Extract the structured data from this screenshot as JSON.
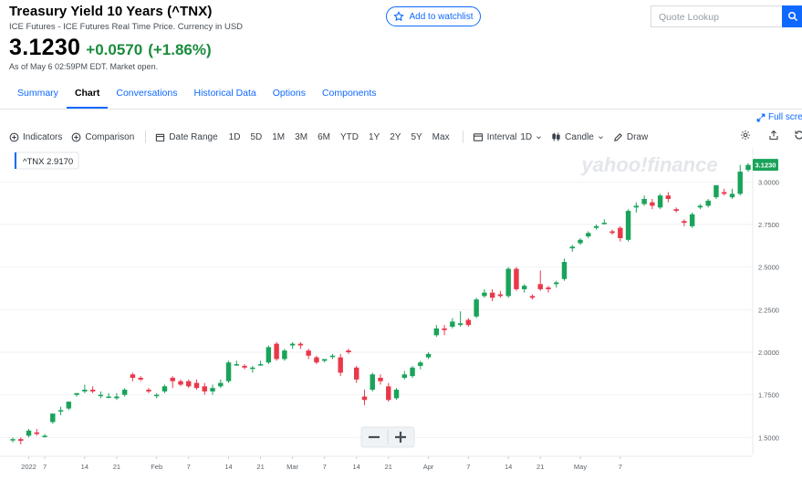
{
  "header": {
    "title": "Treasury Yield 10 Years (^TNX)",
    "subtitle": "ICE Futures - ICE Futures Real Time Price. Currency in USD",
    "price": "3.1230",
    "change": "+0.0570",
    "change_pct": "(+1.86%)",
    "as_of": "As of May 6 02:59PM EDT. Market open."
  },
  "watchlist": {
    "label": "Add to watchlist",
    "icon": "star-icon"
  },
  "search": {
    "placeholder": "Quote Lookup",
    "icon": "search-icon"
  },
  "tabs": [
    {
      "label": "Summary"
    },
    {
      "label": "Chart"
    },
    {
      "label": "Conversations"
    },
    {
      "label": "Historical Data"
    },
    {
      "label": "Options"
    },
    {
      "label": "Components"
    }
  ],
  "active_tab": "Chart",
  "fullscreen_label": "Full scre",
  "toolbar": {
    "indicators": "Indicators",
    "comparison": "Comparison",
    "date_range": "Date Range",
    "ranges": [
      "1D",
      "5D",
      "1M",
      "3M",
      "6M",
      "YTD",
      "1Y",
      "2Y",
      "5Y",
      "Max"
    ],
    "interval_label": "Interval",
    "interval_value": "1D",
    "chart_type": "Candle",
    "draw": "Draw"
  },
  "colors": {
    "accent": "#0f69ff",
    "up": "#1a8c3c",
    "candle_up": "#1aa35a",
    "candle_down": "#e8394b"
  },
  "chart_data": {
    "type": "candlestick",
    "symbol_label": "^TNX",
    "hover_value": "2.9170",
    "last_price_label": "3.1230",
    "watermark": "yahoo!finance",
    "ylim": [
      1.4,
      3.2
    ],
    "y_ticks": [
      "3.0000",
      "2.7500",
      "2.5000",
      "2.2500",
      "2.0000",
      "1.7500",
      "1.5000"
    ],
    "x_ticks": [
      "2022",
      "7",
      "14",
      "21",
      "Feb",
      "7",
      "14",
      "21",
      "Mar",
      "7",
      "14",
      "21",
      "Apr",
      "7",
      "14",
      "21",
      "May",
      "7"
    ],
    "candles": [
      [
        1.49,
        1.5,
        1.47,
        1.49
      ],
      [
        1.49,
        1.5,
        1.46,
        1.48
      ],
      [
        1.51,
        1.55,
        1.5,
        1.54
      ],
      [
        1.53,
        1.55,
        1.51,
        1.52
      ],
      [
        1.51,
        1.52,
        1.5,
        1.51
      ],
      [
        1.59,
        1.64,
        1.58,
        1.64
      ],
      [
        1.66,
        1.68,
        1.63,
        1.66
      ],
      [
        1.67,
        1.71,
        1.66,
        1.71
      ],
      [
        1.75,
        1.76,
        1.74,
        1.76
      ],
      [
        1.77,
        1.81,
        1.76,
        1.78
      ],
      [
        1.78,
        1.8,
        1.76,
        1.77
      ],
      [
        1.75,
        1.77,
        1.73,
        1.75
      ],
      [
        1.74,
        1.76,
        1.73,
        1.74
      ],
      [
        1.73,
        1.76,
        1.72,
        1.74
      ],
      [
        1.75,
        1.79,
        1.74,
        1.78
      ],
      [
        1.87,
        1.88,
        1.83,
        1.85
      ],
      [
        1.85,
        1.86,
        1.83,
        1.84
      ],
      [
        1.78,
        1.79,
        1.76,
        1.77
      ],
      [
        1.75,
        1.76,
        1.73,
        1.75
      ],
      [
        1.77,
        1.81,
        1.76,
        1.8
      ],
      [
        1.85,
        1.86,
        1.79,
        1.83
      ],
      [
        1.83,
        1.84,
        1.8,
        1.81
      ],
      [
        1.83,
        1.84,
        1.79,
        1.8
      ],
      [
        1.82,
        1.84,
        1.78,
        1.79
      ],
      [
        1.8,
        1.82,
        1.75,
        1.77
      ],
      [
        1.77,
        1.81,
        1.75,
        1.79
      ],
      [
        1.8,
        1.84,
        1.79,
        1.82
      ],
      [
        1.83,
        1.95,
        1.82,
        1.94
      ],
      [
        1.93,
        1.95,
        1.92,
        1.93
      ],
      [
        1.92,
        1.93,
        1.9,
        1.91
      ],
      [
        1.91,
        1.92,
        1.88,
        1.91
      ],
      [
        1.93,
        1.95,
        1.92,
        1.93
      ],
      [
        1.94,
        2.04,
        1.93,
        2.03
      ],
      [
        2.05,
        2.06,
        1.95,
        1.96
      ],
      [
        1.96,
        2.02,
        1.95,
        2.01
      ],
      [
        2.04,
        2.06,
        2.02,
        2.05
      ],
      [
        2.05,
        2.06,
        2.02,
        2.04
      ],
      [
        2.01,
        2.02,
        1.96,
        1.98
      ],
      [
        1.97,
        1.98,
        1.93,
        1.94
      ],
      [
        1.95,
        1.96,
        1.94,
        1.96
      ],
      [
        1.98,
        1.99,
        1.96,
        1.98
      ],
      [
        1.97,
        1.99,
        1.86,
        1.88
      ],
      [
        2.01,
        2.02,
        1.99,
        2.0
      ],
      [
        1.91,
        1.92,
        1.82,
        1.84
      ],
      [
        1.74,
        1.78,
        1.69,
        1.72
      ],
      [
        1.78,
        1.88,
        1.77,
        1.87
      ],
      [
        1.85,
        1.87,
        1.81,
        1.83
      ],
      [
        1.8,
        1.82,
        1.71,
        1.72
      ],
      [
        1.73,
        1.79,
        1.72,
        1.78
      ],
      [
        1.85,
        1.89,
        1.84,
        1.87
      ],
      [
        1.86,
        1.92,
        1.85,
        1.91
      ],
      [
        1.92,
        1.95,
        1.9,
        1.94
      ],
      [
        1.97,
        2.0,
        1.96,
        1.99
      ],
      [
        2.1,
        2.16,
        2.09,
        2.14
      ],
      [
        2.14,
        2.16,
        2.1,
        2.13
      ],
      [
        2.15,
        2.2,
        2.14,
        2.18
      ],
      [
        2.16,
        2.24,
        2.15,
        2.17
      ],
      [
        2.19,
        2.2,
        2.15,
        2.16
      ],
      [
        2.21,
        2.32,
        2.2,
        2.31
      ],
      [
        2.33,
        2.37,
        2.32,
        2.35
      ],
      [
        2.35,
        2.37,
        2.3,
        2.32
      ],
      [
        2.34,
        2.36,
        2.32,
        2.33
      ],
      [
        2.33,
        2.5,
        2.32,
        2.49
      ],
      [
        2.49,
        2.5,
        2.36,
        2.37
      ],
      [
        2.37,
        2.4,
        2.35,
        2.39
      ],
      [
        2.33,
        2.34,
        2.31,
        2.32
      ],
      [
        2.4,
        2.48,
        2.36,
        2.37
      ],
      [
        2.38,
        2.39,
        2.35,
        2.37
      ],
      [
        2.4,
        2.42,
        2.38,
        2.41
      ],
      [
        2.43,
        2.55,
        2.42,
        2.53
      ],
      [
        2.61,
        2.63,
        2.59,
        2.62
      ],
      [
        2.64,
        2.67,
        2.63,
        2.66
      ],
      [
        2.68,
        2.71,
        2.67,
        2.7
      ],
      [
        2.73,
        2.75,
        2.72,
        2.74
      ],
      [
        2.76,
        2.78,
        2.75,
        2.76
      ],
      [
        2.71,
        2.72,
        2.69,
        2.7
      ],
      [
        2.73,
        2.74,
        2.65,
        2.67
      ],
      [
        2.66,
        2.84,
        2.65,
        2.83
      ],
      [
        2.85,
        2.88,
        2.82,
        2.86
      ],
      [
        2.87,
        2.92,
        2.86,
        2.9
      ],
      [
        2.88,
        2.9,
        2.84,
        2.86
      ],
      [
        2.85,
        2.93,
        2.84,
        2.92
      ],
      [
        2.92,
        2.94,
        2.88,
        2.9
      ],
      [
        2.84,
        2.85,
        2.82,
        2.83
      ],
      [
        2.77,
        2.78,
        2.74,
        2.76
      ],
      [
        2.74,
        2.82,
        2.73,
        2.81
      ],
      [
        2.85,
        2.87,
        2.84,
        2.86
      ],
      [
        2.86,
        2.9,
        2.85,
        2.89
      ],
      [
        2.91,
        2.98,
        2.9,
        2.98
      ],
      [
        2.94,
        2.96,
        2.92,
        2.93
      ],
      [
        2.91,
        2.96,
        2.9,
        2.93
      ],
      [
        2.93,
        3.1,
        2.92,
        3.06
      ],
      [
        3.07,
        3.11,
        3.06,
        3.1
      ]
    ]
  }
}
